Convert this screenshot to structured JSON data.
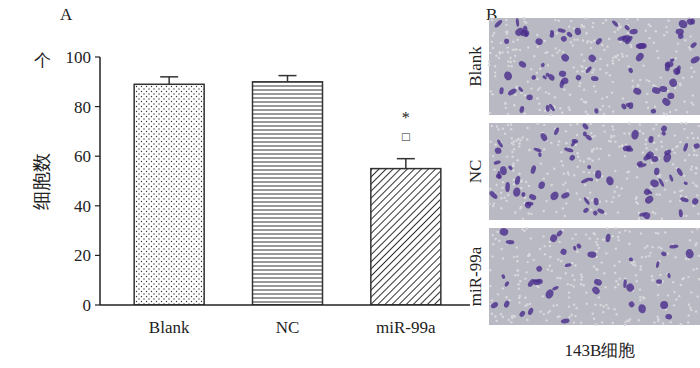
{
  "chart_data": {
    "type": "bar",
    "panel_label": "A",
    "y_label": "细胞数",
    "y_unit": "个",
    "categories": [
      "Blank",
      "NC",
      "miR-99a"
    ],
    "values": [
      89,
      90,
      55
    ],
    "errors": [
      3,
      2.5,
      4
    ],
    "color": "#333333",
    "ylim": [
      0,
      100
    ],
    "yticks": [
      0,
      20,
      40,
      60,
      80,
      100
    ],
    "grid": false,
    "annotations": [
      {
        "text": "*",
        "category": "miR-99a"
      },
      {
        "text": "□",
        "category": "miR-99a"
      }
    ]
  },
  "image_panel": {
    "panel_label": "B",
    "row_labels": [
      "Blank",
      "NC",
      "miR-99a"
    ],
    "caption": "143B细胞"
  }
}
